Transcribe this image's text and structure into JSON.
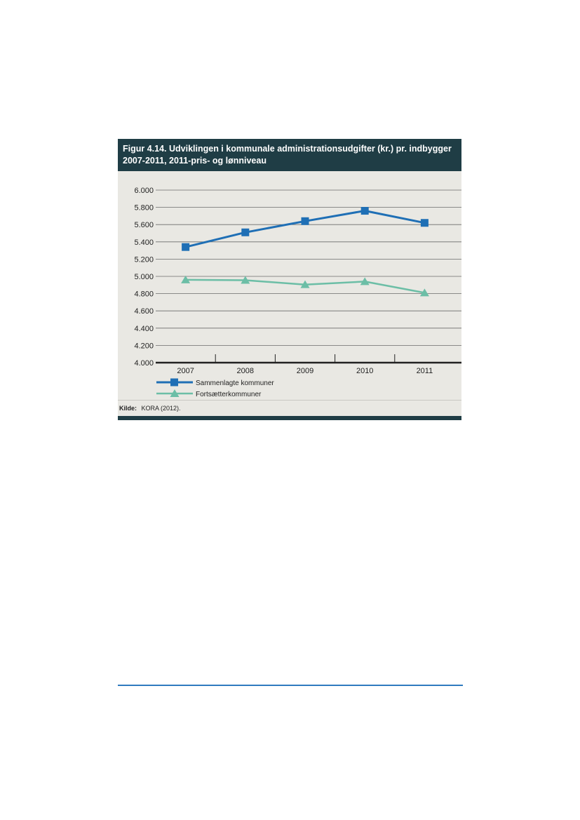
{
  "figure": {
    "title_line1": "Figur 4.14. Udviklingen i kommunale administrationsudgifter (kr.) pr. indbygger",
    "title_line2": "2007-2011, 2011-pris- og lønniveau",
    "source_label": "Kilde:",
    "source_text": "KORA (2012)."
  },
  "colors": {
    "header": "#1f3d45",
    "panel": "#e9e8e3",
    "series_1": "#1f6fb5",
    "series_2": "#6cbea6",
    "rule": "#2f7bbf"
  },
  "chart_data": {
    "type": "line",
    "x": [
      "2007",
      "2008",
      "2009",
      "2010",
      "2011"
    ],
    "ylim": [
      4000,
      6000
    ],
    "yticks": [
      "4.000",
      "4.200",
      "4.400",
      "4.600",
      "4.800",
      "5.000",
      "5.200",
      "5.400",
      "5.600",
      "5.800",
      "6.000"
    ],
    "ytick_values": [
      4000,
      4200,
      4400,
      4600,
      4800,
      5000,
      5200,
      5400,
      5600,
      5800,
      6000
    ],
    "grid": true,
    "legend_position": "bottom-left",
    "series": [
      {
        "name": "Sammenlagte kommuner",
        "marker": "square",
        "values": [
          5340,
          5510,
          5640,
          5760,
          5620
        ]
      },
      {
        "name": "Fortsætterkommuner",
        "marker": "triangle",
        "values": [
          4960,
          4955,
          4905,
          4940,
          4810
        ]
      }
    ]
  }
}
